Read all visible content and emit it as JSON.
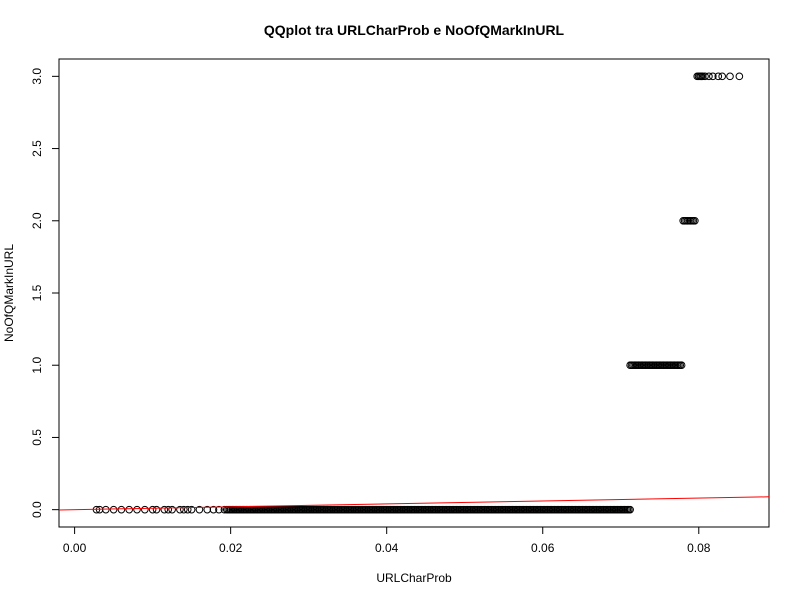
{
  "chart_data": {
    "type": "scatter",
    "title": "QQplot tra URLCharProb e NoOfQMarkInURL",
    "xlabel": "URLCharProb",
    "ylabel": "NoOfQMarkInURL",
    "xlim": [
      -0.002,
      0.089
    ],
    "ylim": [
      -0.12,
      3.12
    ],
    "xticks": [
      0.0,
      0.02,
      0.04,
      0.06,
      0.08
    ],
    "xtick_labels": [
      "0.00",
      "0.02",
      "0.04",
      "0.06",
      "0.08"
    ],
    "yticks": [
      0.0,
      0.5,
      1.0,
      1.5,
      2.0,
      2.5,
      3.0
    ],
    "ytick_labels": [
      "0.0",
      "0.5",
      "1.0",
      "1.5",
      "2.0",
      "2.5",
      "3.0"
    ],
    "grid": false,
    "marker": "open-circle",
    "point_color": "#000000",
    "reference_line": {
      "color": "#ff0000",
      "x": [
        -0.002,
        0.089
      ],
      "y": [
        -0.002,
        0.089
      ]
    },
    "points_sparse": [
      {
        "x": 0.0028,
        "y": 0
      },
      {
        "x": 0.0032,
        "y": 0
      },
      {
        "x": 0.004,
        "y": 0
      },
      {
        "x": 0.005,
        "y": 0
      },
      {
        "x": 0.006,
        "y": 0
      },
      {
        "x": 0.007,
        "y": 0
      },
      {
        "x": 0.008,
        "y": 0
      },
      {
        "x": 0.009,
        "y": 0
      },
      {
        "x": 0.01,
        "y": 0
      },
      {
        "x": 0.0105,
        "y": 0
      },
      {
        "x": 0.0115,
        "y": 0
      },
      {
        "x": 0.012,
        "y": 0
      },
      {
        "x": 0.0125,
        "y": 0
      },
      {
        "x": 0.0135,
        "y": 0
      },
      {
        "x": 0.014,
        "y": 0
      },
      {
        "x": 0.0145,
        "y": 0
      },
      {
        "x": 0.015,
        "y": 0
      },
      {
        "x": 0.016,
        "y": 0
      },
      {
        "x": 0.017,
        "y": 0
      },
      {
        "x": 0.0178,
        "y": 0
      },
      {
        "x": 0.0185,
        "y": 0
      },
      {
        "x": 0.0192,
        "y": 0
      },
      {
        "x": 0.0803,
        "y": 3
      },
      {
        "x": 0.0808,
        "y": 3
      },
      {
        "x": 0.0813,
        "y": 3
      },
      {
        "x": 0.0818,
        "y": 3
      },
      {
        "x": 0.0825,
        "y": 3
      },
      {
        "x": 0.083,
        "y": 3
      },
      {
        "x": 0.084,
        "y": 3
      },
      {
        "x": 0.0852,
        "y": 3
      }
    ],
    "points_dense_ranges": [
      {
        "y": 0,
        "x_from": 0.0195,
        "x_to": 0.0712
      },
      {
        "y": 1,
        "x_from": 0.0712,
        "x_to": 0.0778
      },
      {
        "y": 2,
        "x_from": 0.078,
        "x_to": 0.0795
      },
      {
        "y": 3,
        "x_from": 0.0798,
        "x_to": 0.0805
      }
    ]
  }
}
